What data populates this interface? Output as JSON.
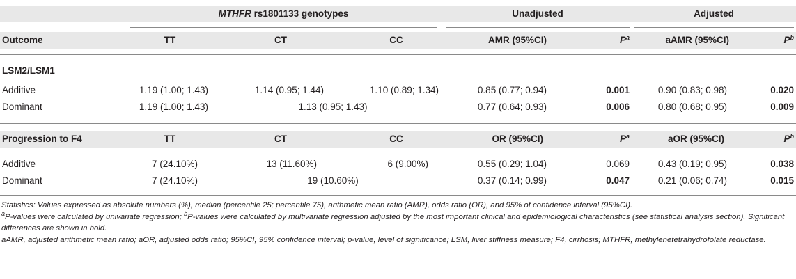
{
  "header": {
    "group_genotypes_gene": "MTHFR",
    "group_genotypes_rest": " rs1801133 genotypes",
    "group_unadjusted": "Unadjusted",
    "group_adjusted": "Adjusted",
    "col_outcome": "Outcome",
    "col_tt": "TT",
    "col_ct": "CT",
    "col_cc": "CC",
    "col_amr": "AMR (95%CI)",
    "col_p": "P",
    "col_p_sup_a": "a",
    "col_aamr": "aAMR (95%CI)",
    "col_p_sup_b": "b"
  },
  "section1": {
    "title": "LSM2/LSM1",
    "rows": [
      {
        "label": "Additive",
        "tt": "1.19 (1.00; 1.43)",
        "ct": "1.14 (0.95; 1.44)",
        "cc": "1.10 (0.89; 1.34)",
        "est": "0.85 (0.77; 0.94)",
        "p": "0.001",
        "aest": "0.90 (0.83; 0.98)",
        "ap": "0.020"
      },
      {
        "label": "Dominant",
        "tt": "1.19 (1.00; 1.43)",
        "ctcc": "1.13 (0.95; 1.43)",
        "est": "0.77 (0.64; 0.93)",
        "p": "0.006",
        "aest": "0.80 (0.68; 0.95)",
        "ap": "0.009"
      }
    ]
  },
  "section2": {
    "title": "Progression to F4",
    "col_tt": "TT",
    "col_ct": "CT",
    "col_cc": "CC",
    "col_or": "OR (95%CI)",
    "col_p": "P",
    "col_p_sup_a": "a",
    "col_aor": "aOR (95%CI)",
    "col_p_sup_b": "b",
    "rows": [
      {
        "label": "Additive",
        "tt": "7 (24.10%)",
        "ct": "13 (11.60%)",
        "cc": "6 (9.00%)",
        "est": "0.55 (0.29; 1.04)",
        "p": "0.069",
        "aest": "0.43 (0.19; 0.95)",
        "ap": "0.038"
      },
      {
        "label": "Dominant",
        "tt": "7 (24.10%)",
        "ctcc": "19 (10.60%)",
        "est": "0.37 (0.14; 0.99)",
        "p": "0.047",
        "aest": "0.21 (0.06; 0.74)",
        "ap": "0.015"
      }
    ]
  },
  "footnotes": {
    "stats": "Statistics: Values expressed as absolute numbers (%), median (percentile 25; percentile 75), arithmetic mean ratio (AMR), odds ratio (OR), and 95% of confidence interval (95%CI).",
    "sup_a": "a",
    "text_a": "P-values were calculated by univariate regression; ",
    "sup_b": "b",
    "text_b": "P-values were calculated by multivariate regression adjusted by the most important clinical and epidemiological characteristics (see statistical analysis section). Significant differences are shown in bold.",
    "abbrev": "aAMR, adjusted arithmetic mean ratio; aOR, adjusted odds ratio; 95%CI, 95% confidence interval; p-value, level of significance; LSM, liver stiffness measure; F4, cirrhosis; MTHFR, methylenetetrahydrofolate reductase."
  }
}
